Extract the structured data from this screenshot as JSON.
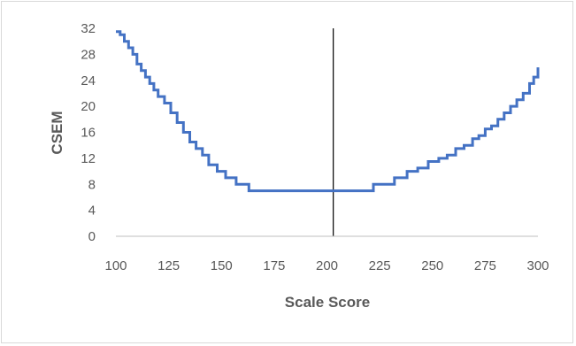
{
  "chart_data": {
    "type": "line",
    "title": "",
    "xlabel": "Scale Score",
    "ylabel": "CSEM",
    "xlim": [
      100,
      300
    ],
    "ylim": [
      0,
      32
    ],
    "x_ticks": [
      100,
      125,
      150,
      175,
      200,
      225,
      250,
      275,
      300
    ],
    "y_ticks": [
      0,
      4,
      8,
      12,
      16,
      20,
      24,
      28,
      32
    ],
    "grid": false,
    "legend": "none",
    "series": [
      {
        "color": "#4472c4",
        "step": true,
        "x": [
          100,
          102,
          104,
          106,
          108,
          110,
          112,
          114,
          116,
          118,
          120,
          123,
          126,
          129,
          132,
          135,
          138,
          141,
          144,
          148,
          152,
          157,
          163,
          169,
          175,
          181,
          187,
          193,
          199,
          205,
          211,
          217,
          222,
          232,
          238,
          243,
          248,
          253,
          257,
          261,
          265,
          269,
          272,
          275,
          278,
          281,
          284,
          287,
          290,
          293,
          296,
          298,
          300
        ],
        "y": [
          31.5,
          31,
          30,
          29,
          28,
          26.5,
          25.5,
          24.5,
          23.5,
          22.5,
          21.5,
          20.5,
          19,
          17.5,
          16,
          14.5,
          13.5,
          12.5,
          11,
          10,
          9,
          8,
          7,
          7,
          7,
          7,
          7,
          7,
          7,
          7,
          7,
          7,
          8,
          9,
          10,
          10.5,
          11.5,
          12,
          12.5,
          13.5,
          14,
          15,
          15.5,
          16.5,
          17,
          18,
          19,
          20,
          21,
          22,
          23.5,
          24.5,
          26
        ]
      }
    ],
    "reference_line": {
      "x": 203,
      "color": "#000000"
    }
  },
  "colors": {
    "axis": "#bfbfbf",
    "text": "#595959"
  }
}
